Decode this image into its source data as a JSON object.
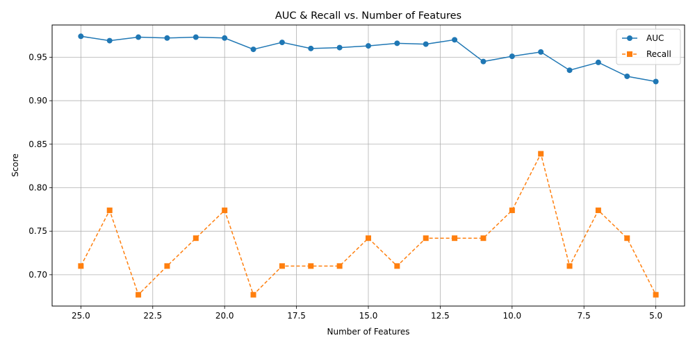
{
  "chart_data": {
    "type": "line",
    "title": "AUC & Recall vs. Number of Features",
    "xlabel": "Number of Features",
    "ylabel": "Score",
    "x": [
      25,
      24,
      23,
      22,
      21,
      20,
      19,
      18,
      17,
      16,
      15,
      14,
      13,
      12,
      11,
      10,
      9,
      8,
      7,
      6,
      5
    ],
    "xlim": [
      26.0,
      4.0
    ],
    "ylim": [
      0.664,
      0.987
    ],
    "x_inverted": true,
    "xticks": [
      "25.0",
      "22.5",
      "20.0",
      "17.5",
      "15.0",
      "12.5",
      "10.0",
      "7.5",
      "5.0"
    ],
    "yticks": [
      "0.70",
      "0.75",
      "0.80",
      "0.85",
      "0.90",
      "0.95"
    ],
    "grid": true,
    "legend_position": "top-right",
    "series": [
      {
        "name": "AUC",
        "color": "#1f77b4",
        "marker": "circle",
        "linestyle": "solid",
        "values": [
          0.974,
          0.969,
          0.973,
          0.972,
          0.973,
          0.972,
          0.959,
          0.967,
          0.96,
          0.961,
          0.963,
          0.966,
          0.965,
          0.97,
          0.945,
          0.951,
          0.956,
          0.935,
          0.944,
          0.928,
          0.922
        ]
      },
      {
        "name": "Recall",
        "color": "#ff7f0e",
        "marker": "square",
        "linestyle": "dashed",
        "values": [
          0.71,
          0.774,
          0.677,
          0.71,
          0.742,
          0.774,
          0.677,
          0.71,
          0.71,
          0.71,
          0.742,
          0.71,
          0.742,
          0.742,
          0.742,
          0.774,
          0.839,
          0.71,
          0.774,
          0.742,
          0.677
        ]
      }
    ]
  }
}
